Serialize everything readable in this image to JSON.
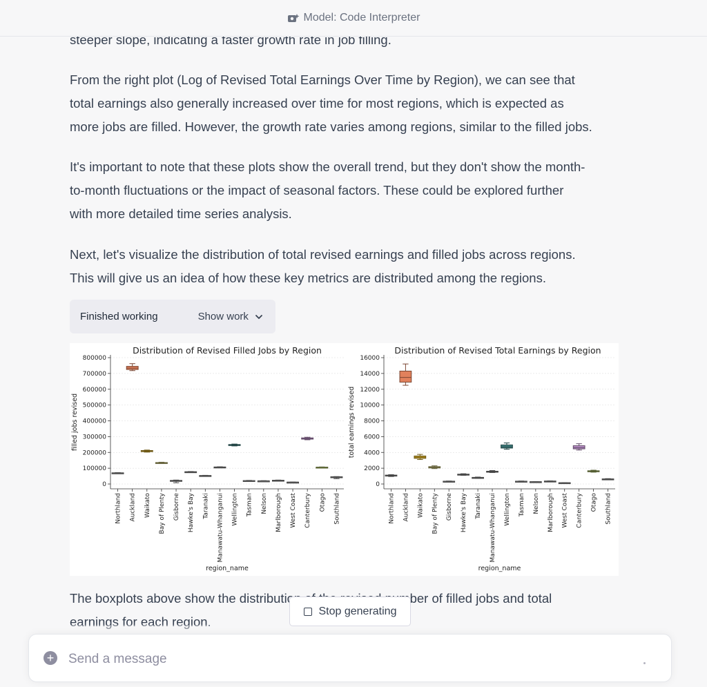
{
  "header": {
    "model_label": "Model: Code Interpreter"
  },
  "message": {
    "cut_line": "steeper slope, indicating a faster growth rate in job filling.",
    "para1": [
      "From the right plot (Log of Revised Total Earnings Over Time by Region), we can see that",
      "total earnings also generally increased over time for most regions, which is expected as",
      "more jobs are filled. However, the growth rate varies among regions, similar to the filled jobs."
    ],
    "para2": [
      "It's important to note that these plots show the overall trend, but they don't show the month-",
      "to-month fluctuations or the impact of seasonal factors. These could be explored further",
      "with more detailed time series analysis."
    ],
    "para3": [
      "Next, let's visualize the distribution of total revised earnings and filled jobs across regions.",
      "This will give us an idea of how these key metrics are distributed among the regions."
    ],
    "para4": [
      "The boxplots above show the distribution of the revised number of filled jobs and total",
      "earnings for each region."
    ]
  },
  "work": {
    "status": "Finished working",
    "toggle": "Show work"
  },
  "stop_button": "Stop generating",
  "composer": {
    "placeholder": "Send a message"
  },
  "colors": {
    "box_gray": "#7f7f7f",
    "auckland": "#e1815c",
    "waikato": "#c9a227",
    "bay_of_plenty": "#b5b06a",
    "wellington": "#3f7f7f",
    "canterbury": "#b68cc4",
    "otago": "#9cab5b"
  },
  "chart_data": [
    {
      "type": "box",
      "title": "Distribution of Revised Filled Jobs by Region",
      "xlabel": "region_name",
      "ylabel": "filled jobs revised",
      "ylim": [
        0,
        800000
      ],
      "yticks": [
        0,
        100000,
        200000,
        300000,
        400000,
        500000,
        600000,
        700000,
        800000
      ],
      "grid": "horizontal",
      "categories": [
        "Northland",
        "Auckland",
        "Waikato",
        "Bay of Plenty",
        "Gisborne",
        "Hawke's Bay",
        "Taranaki",
        "Manawatu-Whanganui",
        "Wellington",
        "Tasman",
        "Nelson",
        "Marlborough",
        "West Coast",
        "Canterbury",
        "Otago",
        "Southland"
      ],
      "boxes": [
        {
          "min": 67000,
          "q1": 69000,
          "median": 70000,
          "q3": 71000,
          "max": 72000
        },
        {
          "min": 718000,
          "q1": 725000,
          "median": 734000,
          "q3": 745000,
          "max": 762000
        },
        {
          "min": 202000,
          "q1": 205000,
          "median": 208000,
          "q3": 212000,
          "max": 215000
        },
        {
          "min": 130000,
          "q1": 132000,
          "median": 134000,
          "q3": 136000,
          "max": 138000
        },
        {
          "min": 8000,
          "q1": 21000,
          "median": 22000,
          "q3": 23000,
          "max": 25000
        },
        {
          "min": 73000,
          "q1": 75000,
          "median": 76000,
          "q3": 78000,
          "max": 79000
        },
        {
          "min": 51000,
          "q1": 52000,
          "median": 53000,
          "q3": 54000,
          "max": 55000
        },
        {
          "min": 103000,
          "q1": 105000,
          "median": 106000,
          "q3": 108000,
          "max": 109000
        },
        {
          "min": 241000,
          "q1": 244000,
          "median": 247000,
          "q3": 250000,
          "max": 253000
        },
        {
          "min": 20000,
          "q1": 21000,
          "median": 22000,
          "q3": 22000,
          "max": 23000
        },
        {
          "min": 19000,
          "q1": 19000,
          "median": 20000,
          "q3": 20000,
          "max": 21000
        },
        {
          "min": 22000,
          "q1": 23000,
          "median": 23000,
          "q3": 24000,
          "max": 25000
        },
        {
          "min": 11000,
          "q1": 11000,
          "median": 12000,
          "q3": 12000,
          "max": 13000
        },
        {
          "min": 280000,
          "q1": 284000,
          "median": 288000,
          "q3": 292000,
          "max": 296000
        },
        {
          "min": 103000,
          "q1": 105000,
          "median": 106000,
          "q3": 107000,
          "max": 108000
        },
        {
          "min": 34000,
          "q1": 44000,
          "median": 45000,
          "q3": 46000,
          "max": 47000
        }
      ]
    },
    {
      "type": "box",
      "title": "Distribution of Revised Total Earnings by Region",
      "xlabel": "region_name",
      "ylabel": "total earnings revised",
      "ylim": [
        0,
        16000
      ],
      "yticks": [
        0,
        2000,
        4000,
        6000,
        8000,
        10000,
        12000,
        14000,
        16000
      ],
      "grid": "horizontal",
      "categories": [
        "Northland",
        "Auckland",
        "Waikato",
        "Bay of Plenty",
        "Gisborne",
        "Hawke's Bay",
        "Taranaki",
        "Manawatu-Whanganui",
        "Wellington",
        "Tasman",
        "Nelson",
        "Marlborough",
        "West Coast",
        "Canterbury",
        "Otago",
        "Southland"
      ],
      "boxes": [
        {
          "min": 950,
          "q1": 1030,
          "median": 1080,
          "q3": 1130,
          "max": 1180
        },
        {
          "min": 12500,
          "q1": 12900,
          "median": 13500,
          "q3": 14300,
          "max": 15200
        },
        {
          "min": 3100,
          "q1": 3250,
          "median": 3400,
          "q3": 3550,
          "max": 3750
        },
        {
          "min": 1950,
          "q1": 2030,
          "median": 2100,
          "q3": 2200,
          "max": 2300
        },
        {
          "min": 300,
          "q1": 320,
          "median": 340,
          "q3": 360,
          "max": 380
        },
        {
          "min": 1100,
          "q1": 1150,
          "median": 1200,
          "q3": 1250,
          "max": 1300
        },
        {
          "min": 720,
          "q1": 760,
          "median": 800,
          "q3": 840,
          "max": 880
        },
        {
          "min": 1450,
          "q1": 1500,
          "median": 1550,
          "q3": 1620,
          "max": 1700
        },
        {
          "min": 4400,
          "q1": 4550,
          "median": 4700,
          "q3": 4950,
          "max": 5200
        },
        {
          "min": 300,
          "q1": 320,
          "median": 340,
          "q3": 360,
          "max": 380
        },
        {
          "min": 250,
          "q1": 270,
          "median": 280,
          "q3": 300,
          "max": 310
        },
        {
          "min": 320,
          "q1": 340,
          "median": 360,
          "q3": 380,
          "max": 400
        },
        {
          "min": 140,
          "q1": 150,
          "median": 160,
          "q3": 170,
          "max": 180
        },
        {
          "min": 4300,
          "q1": 4450,
          "median": 4600,
          "q3": 4850,
          "max": 5100
        },
        {
          "min": 1500,
          "q1": 1570,
          "median": 1620,
          "q3": 1680,
          "max": 1750
        },
        {
          "min": 580,
          "q1": 600,
          "median": 620,
          "q3": 650,
          "max": 680
        }
      ]
    }
  ]
}
